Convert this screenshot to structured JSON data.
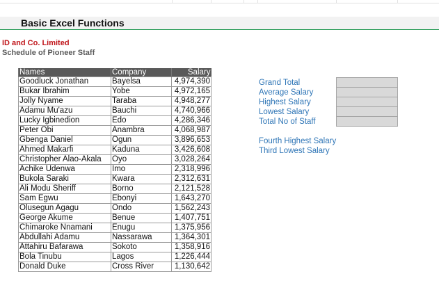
{
  "sheet": {
    "title": "Basic Excel Functions",
    "company": "ID and Co. Limited",
    "subtitle": "Schedule of Pioneer Staff"
  },
  "table": {
    "headers": [
      "Names",
      "Company",
      "Salary"
    ],
    "rows": [
      [
        "Goodluck Jonathan",
        "Bayelsa",
        "4,974,390"
      ],
      [
        "Bukar Ibrahim",
        "Yobe",
        "4,972,165"
      ],
      [
        "Jolly Nyame",
        "Taraba",
        "4,948,277"
      ],
      [
        "Adamu Mu'azu",
        "Bauchi",
        "4,740,966"
      ],
      [
        "Lucky Igbinedion",
        "Edo",
        "4,286,346"
      ],
      [
        "Peter Obi",
        "Anambra",
        "4,068,987"
      ],
      [
        "Gbenga Daniel",
        "Ogun",
        "3,896,653"
      ],
      [
        "Ahmed Makarfi",
        "Kaduna",
        "3,426,608"
      ],
      [
        "Christopher Alao-Akala",
        "Oyo",
        "3,028,264"
      ],
      [
        "Achike Udenwa",
        "Imo",
        "2,318,996"
      ],
      [
        "Bukola Saraki",
        "Kwara",
        "2,312,631"
      ],
      [
        "Ali Modu Sheriff",
        "Borno",
        "2,121,528"
      ],
      [
        "Sam Egwu",
        "Ebonyi",
        "1,643,270"
      ],
      [
        "Olusegun Agagu",
        "Ondo",
        "1,562,243"
      ],
      [
        "George Akume",
        "Benue",
        "1,407,751"
      ],
      [
        "Chimaroke Nnamani",
        "Enugu",
        "1,375,956"
      ],
      [
        "Abdullahi Adamu",
        "Nassarawa",
        "1,364,301"
      ],
      [
        "Attahiru Bafarawa",
        "Sokoto",
        "1,358,916"
      ],
      [
        "Bola Tinubu",
        "Lagos",
        "1,226,444"
      ],
      [
        "Donald Duke",
        "Cross River",
        "1,130,642"
      ]
    ]
  },
  "stats": {
    "labels": [
      "Grand Total",
      "Average Salary",
      "Highest Salary",
      "Lowest Salary",
      "Total No of Staff"
    ],
    "extra_labels": [
      "Fourth Highest Salary",
      "Third Lowest Salary"
    ]
  },
  "colors": {
    "title_accent": "#2e9e5b",
    "company_red": "#c0161b",
    "stat_blue": "#2e75b6",
    "header_gray": "#595959"
  }
}
